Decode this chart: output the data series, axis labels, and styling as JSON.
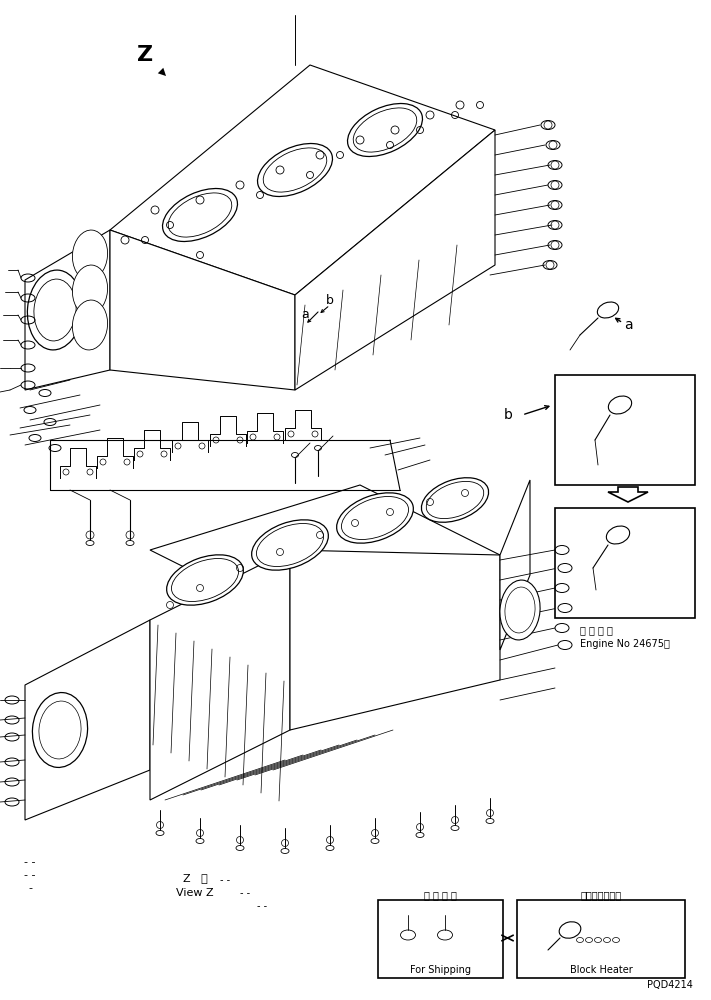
{
  "bg_color": "#ffffff",
  "lc": "#000000",
  "view_z_l1": "Z   根",
  "view_z_l2": "View Z",
  "for_ship_l1": "運 搬 部 品",
  "for_ship_l2": "For Shipping",
  "bh_l1": "ブロックヒータ",
  "bh_l2": "Block Heater",
  "eng_l1": "適 用 号 機",
  "eng_l2": "Engine No 24675～",
  "page_id": "PQD4214",
  "la": "a",
  "lb": "b",
  "lz": "Z"
}
